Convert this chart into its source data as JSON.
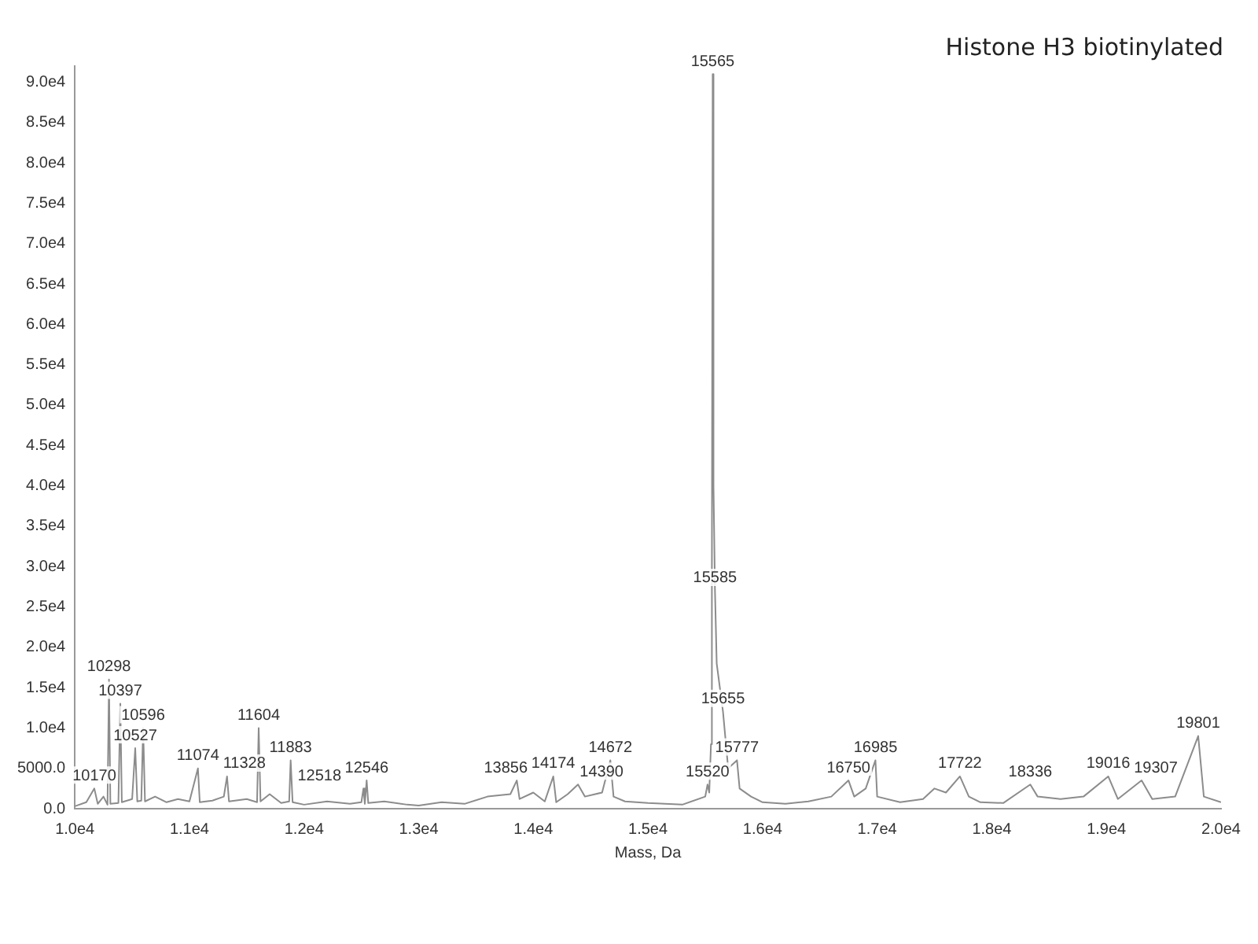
{
  "chart_data": {
    "type": "line",
    "title": "Histone H3 biotinylated",
    "xlabel": "Mass, Da",
    "xlim": [
      10000,
      20000
    ],
    "xticks": [
      {
        "value": 10000,
        "label": "1.0e4"
      },
      {
        "value": 11000,
        "label": "1.1e4"
      },
      {
        "value": 12000,
        "label": "1.2e4"
      },
      {
        "value": 13000,
        "label": "1.3e4"
      },
      {
        "value": 14000,
        "label": "1.4e4"
      },
      {
        "value": 15000,
        "label": "1.5e4"
      },
      {
        "value": 16000,
        "label": "1.6e4"
      },
      {
        "value": 17000,
        "label": "1.7e4"
      },
      {
        "value": 18000,
        "label": "1.8e4"
      },
      {
        "value": 19000,
        "label": "1.9e4"
      },
      {
        "value": 20000,
        "label": "2.0e4"
      }
    ],
    "ylim": [
      0,
      92000
    ],
    "yticks": [
      {
        "value": 0,
        "label": "0.0"
      },
      {
        "value": 5000,
        "label": "5000.0"
      },
      {
        "value": 10000,
        "label": "1.0e4"
      },
      {
        "value": 15000,
        "label": "1.5e4"
      },
      {
        "value": 20000,
        "label": "2.0e4"
      },
      {
        "value": 25000,
        "label": "2.5e4"
      },
      {
        "value": 30000,
        "label": "3.0e4"
      },
      {
        "value": 35000,
        "label": "3.5e4"
      },
      {
        "value": 40000,
        "label": "4.0e4"
      },
      {
        "value": 45000,
        "label": "4.5e4"
      },
      {
        "value": 50000,
        "label": "5.0e4"
      },
      {
        "value": 55000,
        "label": "5.5e4"
      },
      {
        "value": 60000,
        "label": "6.0e4"
      },
      {
        "value": 65000,
        "label": "6.5e4"
      },
      {
        "value": 70000,
        "label": "7.0e4"
      },
      {
        "value": 75000,
        "label": "7.5e4"
      },
      {
        "value": 80000,
        "label": "8.0e4"
      },
      {
        "value": 85000,
        "label": "8.5e4"
      },
      {
        "value": 90000,
        "label": "9.0e4"
      }
    ],
    "grid": false,
    "legend": false,
    "marker": "none",
    "line_style": "solid",
    "series": [
      {
        "color": "#8c8c8c",
        "x": [
          10000,
          10100,
          10170,
          10200,
          10250,
          10285,
          10298,
          10310,
          10380,
          10397,
          10410,
          10500,
          10527,
          10545,
          10580,
          10596,
          10612,
          10700,
          10800,
          10900,
          11000,
          11074,
          11090,
          11200,
          11300,
          11328,
          11345,
          11500,
          11590,
          11604,
          11620,
          11700,
          11800,
          11870,
          11883,
          11900,
          12000,
          12200,
          12400,
          12500,
          12518,
          12530,
          12546,
          12560,
          12700,
          12900,
          13000,
          13200,
          13400,
          13600,
          13800,
          13856,
          13880,
          14000,
          14100,
          14174,
          14200,
          14300,
          14390,
          14450,
          14600,
          14672,
          14700,
          14800,
          15000,
          15300,
          15500,
          15520,
          15535,
          15550,
          15558,
          15565,
          15572,
          15585,
          15600,
          15655,
          15700,
          15777,
          15800,
          15900,
          16000,
          16200,
          16400,
          16600,
          16750,
          16800,
          16900,
          16985,
          17000,
          17200,
          17400,
          17500,
          17600,
          17722,
          17800,
          17900,
          18100,
          18336,
          18400,
          18600,
          18800,
          19016,
          19100,
          19307,
          19400,
          19600,
          19801,
          19850,
          20000
        ],
        "values": [
          300,
          800,
          2500,
          600,
          1500,
          500,
          16000,
          600,
          700,
          13000,
          800,
          1200,
          7500,
          900,
          1000,
          10000,
          900,
          1500,
          800,
          1200,
          900,
          5000,
          800,
          1000,
          1500,
          4000,
          900,
          1200,
          800,
          10000,
          900,
          1800,
          700,
          900,
          6000,
          800,
          500,
          900,
          600,
          800,
          2500,
          600,
          3500,
          700,
          900,
          500,
          400,
          800,
          600,
          1500,
          1800,
          3500,
          1200,
          2000,
          900,
          4000,
          800,
          1800,
          3000,
          1500,
          2000,
          6000,
          1500,
          900,
          700,
          500,
          1500,
          3000,
          2000,
          8000,
          30000,
          91000,
          40000,
          27000,
          18000,
          12000,
          5000,
          6000,
          2500,
          1500,
          800,
          600,
          900,
          1500,
          3500,
          1500,
          2500,
          6000,
          1500,
          800,
          1200,
          2500,
          2000,
          4000,
          1500,
          800,
          700,
          3000,
          1500,
          1200,
          1500,
          4000,
          1200,
          3500,
          1200,
          1500,
          9000,
          1500,
          800
        ]
      }
    ],
    "annotations": [
      {
        "text": "10170",
        "x": 10170,
        "y": 2500
      },
      {
        "text": "10298",
        "x": 10298,
        "y": 16000
      },
      {
        "text": "10397",
        "x": 10397,
        "y": 13000
      },
      {
        "text": "10527",
        "x": 10527,
        "y": 7500
      },
      {
        "text": "10596",
        "x": 10596,
        "y": 10000
      },
      {
        "text": "11074",
        "x": 11074,
        "y": 5000
      },
      {
        "text": "11328",
        "x": 11328,
        "y": 4000
      },
      {
        "text": "11604",
        "x": 11604,
        "y": 10000
      },
      {
        "text": "11883",
        "x": 11883,
        "y": 6000
      },
      {
        "text": "12518",
        "x": 12518,
        "y": 2500
      },
      {
        "text": "12546",
        "x": 12546,
        "y": 3500
      },
      {
        "text": "13856",
        "x": 13856,
        "y": 3500
      },
      {
        "text": "14174",
        "x": 14174,
        "y": 4000
      },
      {
        "text": "14390",
        "x": 14390,
        "y": 3000
      },
      {
        "text": "14672",
        "x": 14672,
        "y": 6000
      },
      {
        "text": "15520",
        "x": 15520,
        "y": 3000
      },
      {
        "text": "15565",
        "x": 15565,
        "y": 91000
      },
      {
        "text": "15585",
        "x": 15585,
        "y": 27000
      },
      {
        "text": "15655",
        "x": 15655,
        "y": 12000
      },
      {
        "text": "15777",
        "x": 15777,
        "y": 6000
      },
      {
        "text": "16750",
        "x": 16750,
        "y": 3500
      },
      {
        "text": "16985",
        "x": 16985,
        "y": 6000
      },
      {
        "text": "17722",
        "x": 17722,
        "y": 4000
      },
      {
        "text": "18336",
        "x": 18336,
        "y": 3000
      },
      {
        "text": "19016",
        "x": 19016,
        "y": 4000
      },
      {
        "text": "19307",
        "x": 19307,
        "y": 3500
      },
      {
        "text": "19801",
        "x": 19801,
        "y": 9000
      }
    ]
  }
}
